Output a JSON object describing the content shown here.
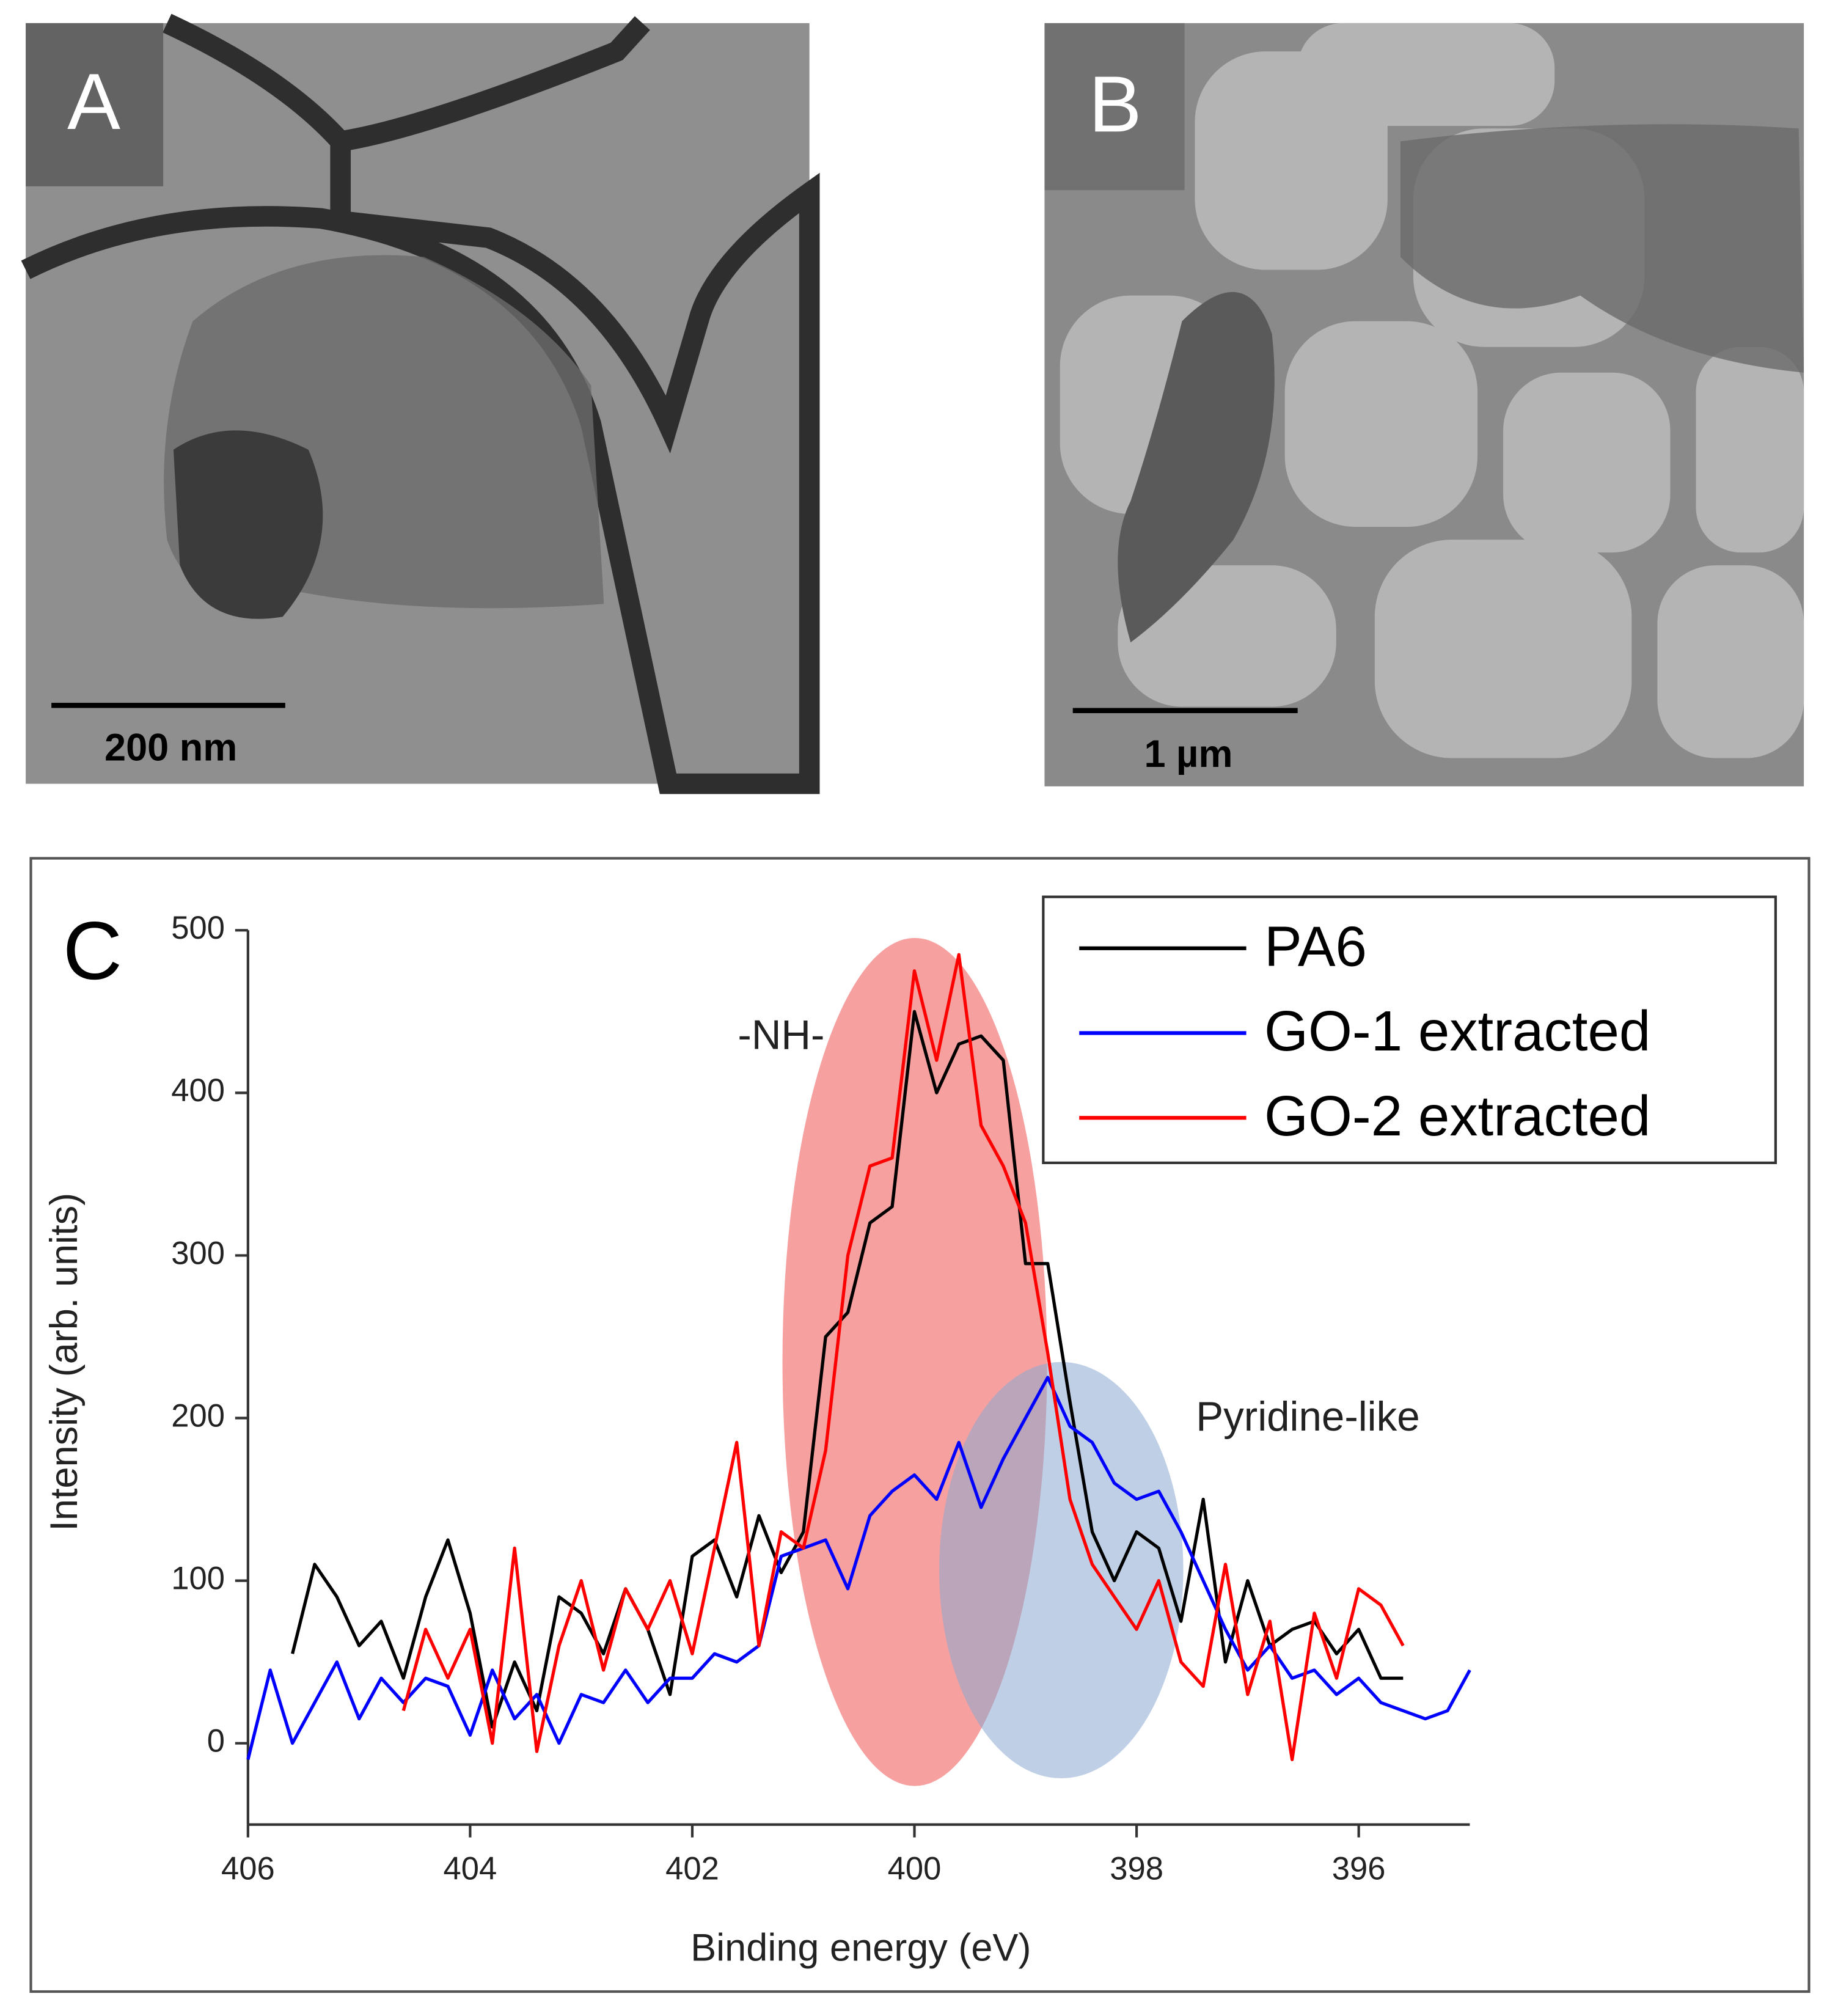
{
  "panels": [
    {
      "label": "A",
      "scale_bar": "200 nm"
    },
    {
      "label": "B",
      "scale_bar": "1 µm"
    }
  ],
  "chart_data": {
    "type": "line",
    "panel_label": "C",
    "x_label": "Binding energy (eV)",
    "y_label": "Intensity (arb. units)",
    "annotations": [
      "-NH-",
      "Pyridine-like"
    ],
    "x": [
      406,
      405.8,
      405.6,
      405.4,
      405.2,
      405,
      404.8,
      404.6,
      404.4,
      404.2,
      404,
      403.8,
      403.6,
      403.4,
      403.2,
      403,
      402.8,
      402.6,
      402.4,
      402.2,
      402,
      401.8,
      401.6,
      401.4,
      401.2,
      401,
      400.8,
      400.6,
      400.4,
      400.2,
      400,
      399.8,
      399.6,
      399.4,
      399.2,
      399,
      398.8,
      398.6,
      398.4,
      398.2,
      398,
      397.8,
      397.6,
      397.4,
      397.2,
      397,
      396.8,
      396.6,
      396.4,
      396.2,
      396,
      395.8,
      395.6,
      395.4,
      395.2,
      395
    ],
    "series": [
      {
        "name": "PA6",
        "color": "#000000",
        "values": [
          null,
          null,
          55,
          110,
          90,
          60,
          75,
          40,
          90,
          125,
          80,
          10,
          50,
          20,
          90,
          80,
          55,
          95,
          70,
          30,
          115,
          125,
          90,
          140,
          105,
          130,
          250,
          265,
          320,
          330,
          450,
          400,
          430,
          435,
          420,
          295,
          295,
          210,
          130,
          100,
          130,
          120,
          75,
          150,
          50,
          100,
          60,
          70,
          75,
          55,
          70,
          40,
          40,
          null,
          null,
          null
        ]
      },
      {
        "name": "GO-1 extracted",
        "color": "#0000ff",
        "values": [
          -10,
          45,
          0,
          25,
          50,
          15,
          40,
          25,
          40,
          35,
          5,
          45,
          15,
          30,
          0,
          30,
          25,
          45,
          25,
          40,
          40,
          55,
          50,
          60,
          115,
          120,
          125,
          95,
          140,
          155,
          165,
          150,
          185,
          145,
          175,
          200,
          225,
          195,
          185,
          160,
          150,
          155,
          130,
          100,
          70,
          45,
          60,
          40,
          45,
          30,
          40,
          25,
          20,
          15,
          20,
          45
        ]
      },
      {
        "name": "GO-2 extracted",
        "color": "#ff0000",
        "values": [
          null,
          null,
          null,
          null,
          null,
          null,
          null,
          20,
          70,
          40,
          70,
          0,
          120,
          -5,
          60,
          100,
          45,
          95,
          70,
          100,
          55,
          120,
          185,
          60,
          130,
          120,
          180,
          300,
          355,
          360,
          475,
          420,
          485,
          380,
          355,
          320,
          240,
          150,
          110,
          90,
          70,
          100,
          50,
          35,
          110,
          30,
          75,
          -10,
          80,
          40,
          95,
          85,
          60,
          null,
          null,
          null
        ]
      }
    ],
    "xlim": [
      406,
      395
    ],
    "xticks": [
      406,
      404,
      402,
      400,
      398,
      396
    ],
    "ylim": [
      -50,
      500
    ],
    "yticks": [
      0,
      100,
      200,
      300,
      400,
      500
    ],
    "legend": "upper right",
    "grid": false
  }
}
